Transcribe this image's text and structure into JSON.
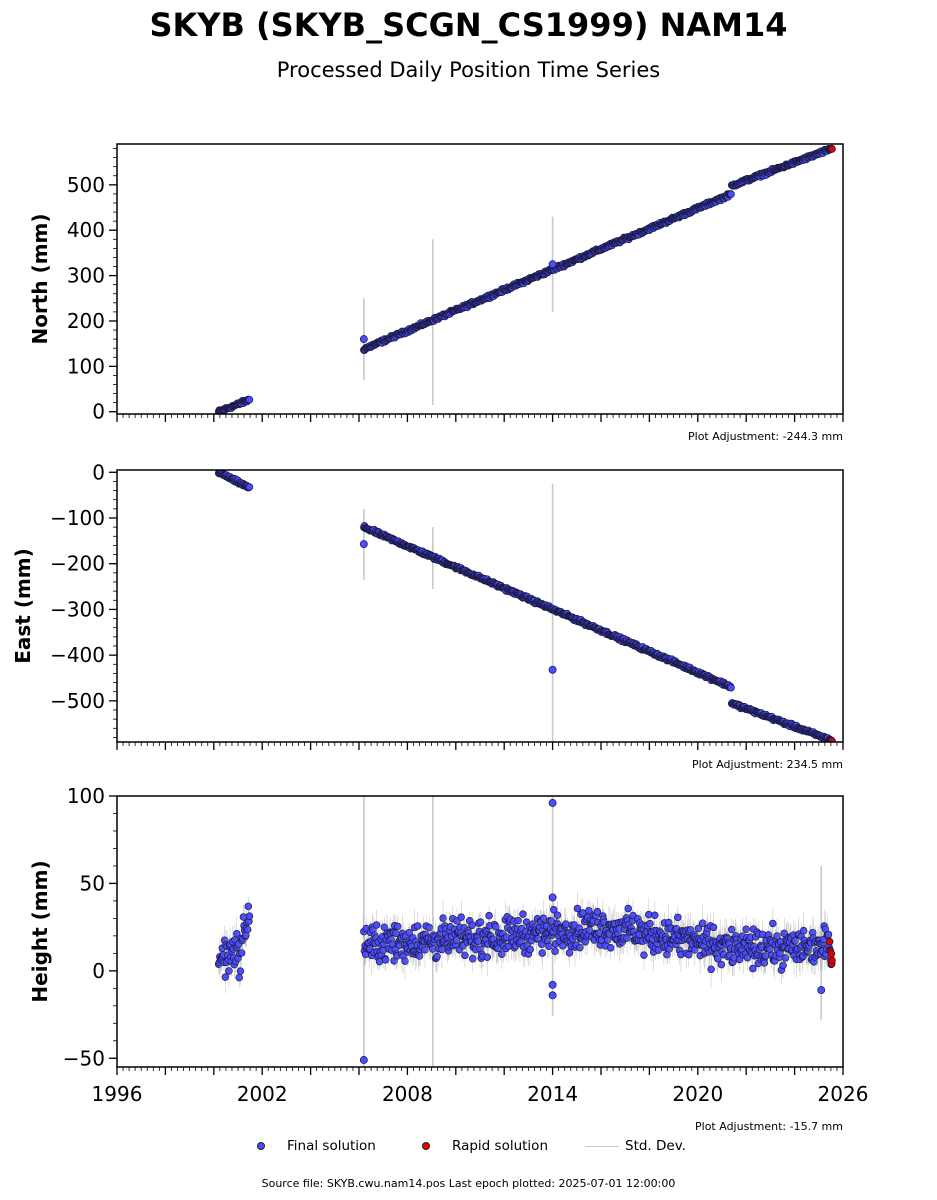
{
  "title": "SKYB (SKYB_SCGN_CS1999) NAM14",
  "subtitle": "Processed Daily Position Time Series",
  "source_note": "Source file: SKYB.cwu.nam14.pos  Last epoch plotted: 2025-07-01 12:00:00",
  "legend": {
    "final_label": "Final solution",
    "rapid_label": "Rapid solution",
    "std_label": "Std. Dev."
  },
  "colors": {
    "final": "#4b4bff",
    "rapid": "#e00000",
    "std": "#c8c8c8",
    "edge": "#1a1a40"
  },
  "chart_data": [
    {
      "type": "scatter",
      "ylabel": "North (mm)",
      "adjustment": "Plot Adjustment: -244.3 mm",
      "xlim": [
        1996,
        2026
      ],
      "ylim": [
        -5,
        590
      ],
      "yticks": [
        0,
        100,
        200,
        300,
        400,
        500
      ],
      "yticklabels": [
        "0",
        "100",
        "200",
        "300",
        "400",
        "500"
      ],
      "xticks": [
        1996,
        2002,
        2008,
        2014,
        2020,
        2026
      ],
      "xticklabels": [],
      "series": [
        {
          "role": "final",
          "segments": [
            {
              "x": [
                2000.2,
                2001.5
              ],
              "y": [
                0,
                27
              ]
            },
            {
              "x": [
                2006.2,
                2021.4
              ],
              "y": [
                138,
                480
              ]
            },
            {
              "x": [
                2021.4,
                2025.45
              ],
              "y": [
                498,
                578
              ]
            }
          ],
          "noise_mm": 3,
          "outliers": [
            {
              "x": 2006.2,
              "y": 160
            },
            {
              "x": 2014.0,
              "y": 325
            }
          ]
        },
        {
          "role": "rapid",
          "segments": [
            {
              "x": [
                2025.45,
                2025.55
              ],
              "y": [
                578,
                580
              ]
            }
          ],
          "noise_mm": 1
        }
      ],
      "std_spikes": [
        {
          "x": 2006.2,
          "lo": 70,
          "hi": 250
        },
        {
          "x": 2009.05,
          "lo": 15,
          "hi": 380
        },
        {
          "x": 2014.0,
          "lo": 220,
          "hi": 430
        }
      ]
    },
    {
      "type": "scatter",
      "ylabel": "East (mm)",
      "adjustment": "Plot Adjustment: 234.5 mm",
      "xlim": [
        1996,
        2026
      ],
      "ylim": [
        -590,
        5
      ],
      "yticks": [
        0,
        -100,
        -200,
        -300,
        -400,
        -500
      ],
      "yticklabels": [
        "0",
        "−100",
        "−200",
        "−300",
        "−400",
        "−500"
      ],
      "xticks": [
        1996,
        2002,
        2008,
        2014,
        2020,
        2026
      ],
      "xticklabels": [],
      "series": [
        {
          "role": "final",
          "segments": [
            {
              "x": [
                2000.2,
                2001.5
              ],
              "y": [
                0,
                -35
              ]
            },
            {
              "x": [
                2006.2,
                2021.4
              ],
              "y": [
                -120,
                -470
              ]
            },
            {
              "x": [
                2021.4,
                2025.45
              ],
              "y": [
                -505,
                -585
              ]
            }
          ],
          "noise_mm": 3,
          "outliers": [
            {
              "x": 2006.2,
              "y": -157
            },
            {
              "x": 2014.0,
              "y": -432
            }
          ]
        },
        {
          "role": "rapid",
          "segments": [
            {
              "x": [
                2025.45,
                2025.55
              ],
              "y": [
                -585,
                -588
              ]
            }
          ],
          "noise_mm": 1
        }
      ],
      "std_spikes": [
        {
          "x": 2006.2,
          "lo": -235,
          "hi": -80
        },
        {
          "x": 2009.05,
          "lo": -255,
          "hi": -120
        },
        {
          "x": 2014.0,
          "lo": -590,
          "hi": -25
        }
      ]
    },
    {
      "type": "scatter",
      "ylabel": "Height (mm)",
      "adjustment": "Plot Adjustment: -15.7 mm",
      "xlim": [
        1996,
        2026
      ],
      "ylim": [
        -55,
        100
      ],
      "yticks": [
        -50,
        0,
        50,
        100
      ],
      "yticklabels": [
        "−50",
        "0",
        "50",
        "100"
      ],
      "xticks": [
        1996,
        2002,
        2008,
        2014,
        2020,
        2026
      ],
      "xticklabels": [
        "1996",
        "2002",
        "2008",
        "2014",
        "2020",
        "2026"
      ],
      "series": [
        {
          "role": "final",
          "segments": [
            {
              "x": [
                2000.2,
                2001.0
              ],
              "y": [
                5,
                15
              ]
            },
            {
              "x": [
                2001.0,
                2001.5
              ],
              "y": [
                5,
                35
              ]
            },
            {
              "x": [
                2006.2,
                2010.0
              ],
              "y": [
                15,
                18
              ]
            },
            {
              "x": [
                2010.0,
                2016.0
              ],
              "y": [
                18,
                25
              ]
            },
            {
              "x": [
                2016.0,
                2022.0
              ],
              "y": [
                25,
                12
              ]
            },
            {
              "x": [
                2022.0,
                2025.45
              ],
              "y": [
                12,
                15
              ]
            }
          ],
          "noise_mm": 9,
          "outliers": [
            {
              "x": 2006.2,
              "y": -51
            },
            {
              "x": 2014.0,
              "y": 96
            },
            {
              "x": 2014.0,
              "y": -14
            },
            {
              "x": 2014.0,
              "y": 42
            },
            {
              "x": 2014.0,
              "y": -8
            },
            {
              "x": 2025.1,
              "y": -11
            }
          ]
        },
        {
          "role": "rapid",
          "segments": [
            {
              "x": [
                2025.45,
                2025.55
              ],
              "y": [
                14,
                6
              ]
            }
          ],
          "noise_mm": 4
        }
      ],
      "std_spikes": [
        {
          "x": 2006.2,
          "lo": -55,
          "hi": 100
        },
        {
          "x": 2009.05,
          "lo": -55,
          "hi": 100
        },
        {
          "x": 2014.0,
          "lo": -26,
          "hi": 100
        },
        {
          "x": 2025.1,
          "lo": -28,
          "hi": 60
        }
      ]
    }
  ]
}
